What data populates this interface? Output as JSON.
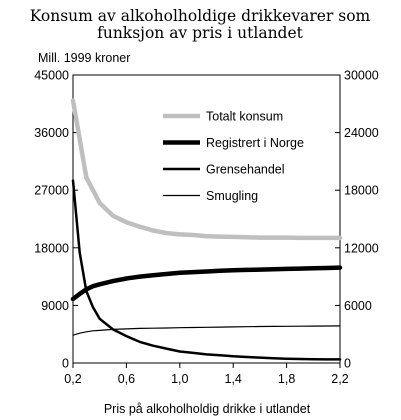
{
  "chart_data": {
    "type": "line",
    "title_lines": [
      "Konsum av alkoholholdige drikkevarer som",
      "funksjon av pris i utlandet"
    ],
    "unit_label": "Mill. 1999 kroner",
    "xlabel": "Pris på alkoholholdig drikke i utlandet",
    "xlim": [
      0.2,
      2.2
    ],
    "x_ticks": [
      0.2,
      0.6,
      1.0,
      1.4,
      1.8,
      2.2
    ],
    "x_tick_labels": [
      "0,2",
      "0,6",
      "1,0",
      "1,4",
      "1,8",
      "2,2"
    ],
    "ylim_left": [
      0,
      45000
    ],
    "y_ticks_left": [
      0,
      9000,
      18000,
      27000,
      36000,
      45000
    ],
    "ylim_right": [
      0,
      30000
    ],
    "y_ticks_right": [
      0,
      6000,
      12000,
      18000,
      24000,
      30000
    ],
    "grid": false,
    "legend_position": "inside-upper-right",
    "x": [
      0.2,
      0.25,
      0.3,
      0.35,
      0.4,
      0.5,
      0.6,
      0.7,
      0.8,
      0.9,
      1.0,
      1.1,
      1.2,
      1.3,
      1.4,
      1.5,
      1.6,
      1.7,
      1.8,
      1.9,
      2.0,
      2.1,
      2.2
    ],
    "series": [
      {
        "name": "Totalt konsum",
        "axis": "left",
        "color": "#bfbfbf",
        "width": 4.5,
        "values": [
          41000,
          35000,
          29000,
          27000,
          25000,
          23000,
          22000,
          21300,
          20700,
          20300,
          20100,
          20000,
          19800,
          19750,
          19700,
          19650,
          19600,
          19600,
          19600,
          19550,
          19550,
          19550,
          19550
        ]
      },
      {
        "name": "Registrert i Norge",
        "axis": "left",
        "color": "#000000",
        "width": 4.5,
        "values": [
          10000,
          10800,
          11500,
          12000,
          12300,
          12800,
          13200,
          13500,
          13700,
          13900,
          14100,
          14200,
          14300,
          14400,
          14500,
          14550,
          14600,
          14650,
          14700,
          14750,
          14800,
          14850,
          14900
        ]
      },
      {
        "name": "Grensehandel",
        "axis": "right",
        "color": "#000000",
        "width": 2.5,
        "values": [
          19000,
          11500,
          7500,
          5800,
          4600,
          3500,
          2800,
          2200,
          1800,
          1500,
          1200,
          1050,
          900,
          800,
          700,
          620,
          560,
          500,
          450,
          420,
          400,
          380,
          380
        ]
      },
      {
        "name": "Smugling",
        "axis": "right",
        "color": "#000000",
        "width": 1.2,
        "values": [
          2900,
          3100,
          3250,
          3350,
          3400,
          3500,
          3550,
          3600,
          3620,
          3650,
          3680,
          3700,
          3720,
          3740,
          3760,
          3780,
          3800,
          3810,
          3820,
          3830,
          3840,
          3850,
          3860
        ]
      }
    ]
  }
}
